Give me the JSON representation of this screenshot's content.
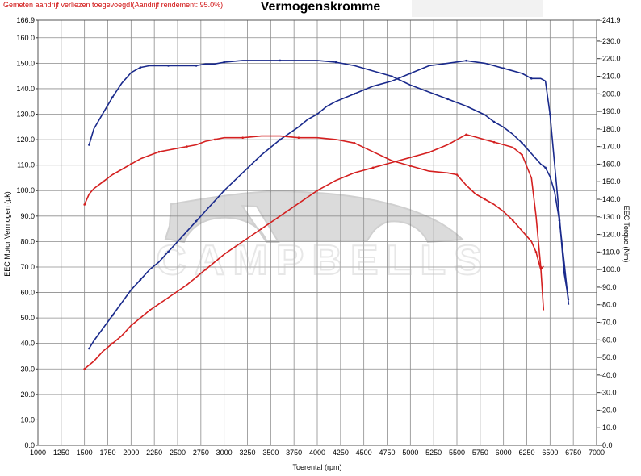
{
  "header": {
    "warning": "Gemeten aandrijf verliezen toegevoegd!(Aandrijf rendement: 95.0%)",
    "title": "Vermogenskromme"
  },
  "watermark": {
    "text": "CAMPBELLS",
    "icon": "car-silhouette-logo"
  },
  "chart_data": {
    "type": "line",
    "title": "Vermogenskromme",
    "xlabel": "Toerental (rpm)",
    "ylabel": "EEC Motor Vermogen (pk)",
    "y2label": "EEC Torque (Nm)",
    "xlim": [
      1000,
      7000
    ],
    "ylim": [
      0,
      166.9
    ],
    "y2lim": [
      0,
      241.9
    ],
    "x_ticks": [
      "1000",
      "1250",
      "1500",
      "1750",
      "2000",
      "2250",
      "2500",
      "2750",
      "3000",
      "3250",
      "3500",
      "3750",
      "4000",
      "4250",
      "4500",
      "4750",
      "5000",
      "5250",
      "5500",
      "5750",
      "6000",
      "6250",
      "6500",
      "6750",
      "7000"
    ],
    "y_ticks": [
      "0.0",
      "10.0",
      "20.0",
      "30.0",
      "40.0",
      "50.0",
      "60.0",
      "70.0",
      "80.0",
      "90.0",
      "100.0",
      "110.0",
      "120.0",
      "130.0",
      "140.0",
      "150.0",
      "160.0",
      "166.9"
    ],
    "y2_ticks": [
      "0.0",
      "10.0",
      "20.0",
      "30.0",
      "40.0",
      "50.0",
      "60.0",
      "70.0",
      "80.0",
      "90.0",
      "100.0",
      "110.0",
      "120.0",
      "130.0",
      "140.0",
      "150.0",
      "160.0",
      "170.0",
      "180.0",
      "190.0",
      "200.0",
      "210.0",
      "220.0",
      "230.0",
      "241.9"
    ],
    "grid": true,
    "colors": {
      "blue": "#1a2a8c",
      "red": "#d42020"
    },
    "series": [
      {
        "kind": "power",
        "axis": "left",
        "color": "#1a2a8c",
        "x": [
          1550,
          1600,
          1700,
          1800,
          1900,
          2000,
          2100,
          2200,
          2300,
          2400,
          2500,
          2600,
          2700,
          2800,
          2900,
          3000,
          3200,
          3400,
          3600,
          3800,
          3900,
          4000,
          4100,
          4200,
          4400,
          4600,
          4800,
          5000,
          5200,
          5400,
          5600,
          5800,
          5900,
          6000,
          6100,
          6200,
          6300,
          6400,
          6450,
          6500,
          6550,
          6600,
          6650,
          6700
        ],
        "y": [
          38,
          41,
          46,
          51,
          56,
          61,
          65,
          69,
          72,
          76,
          80,
          84,
          88,
          92,
          96,
          100,
          107,
          114,
          120,
          125,
          128,
          130,
          133,
          135,
          138,
          141,
          143,
          146,
          149,
          150,
          151,
          150,
          149,
          148,
          147,
          146,
          144,
          144,
          143,
          130,
          110,
          90,
          68,
          57
        ]
      },
      {
        "kind": "torque",
        "axis": "right",
        "color": "#1a2a8c",
        "x": [
          1550,
          1600,
          1700,
          1800,
          1900,
          2000,
          2100,
          2200,
          2300,
          2400,
          2500,
          2600,
          2700,
          2800,
          2900,
          3000,
          3200,
          3400,
          3600,
          3800,
          4000,
          4200,
          4400,
          4600,
          4800,
          5000,
          5200,
          5400,
          5600,
          5800,
          5900,
          6000,
          6100,
          6200,
          6300,
          6400,
          6450,
          6500,
          6550,
          6600,
          6650,
          6700
        ],
        "y": [
          171,
          180,
          189,
          198,
          206,
          212,
          215,
          216,
          216,
          216,
          216,
          216,
          216,
          217,
          217,
          218,
          219,
          219,
          219,
          219,
          219,
          218,
          216,
          213,
          210,
          205,
          201,
          197,
          193,
          188,
          184,
          181,
          177,
          172,
          166,
          160,
          158,
          153,
          144,
          128,
          105,
          80
        ]
      },
      {
        "kind": "power",
        "axis": "left",
        "color": "#d42020",
        "x": [
          1500,
          1600,
          1700,
          1800,
          1900,
          2000,
          2200,
          2400,
          2600,
          2800,
          3000,
          3200,
          3400,
          3600,
          3800,
          4000,
          4200,
          4400,
          4600,
          4800,
          5000,
          5200,
          5400,
          5500,
          5600,
          5700,
          5800,
          5900,
          6000,
          6100,
          6200,
          6300,
          6350,
          6400,
          6430
        ],
        "y": [
          30,
          33,
          37,
          40,
          43,
          47,
          53,
          58,
          63,
          69,
          75,
          80,
          85,
          90,
          95,
          100,
          104,
          107,
          109,
          111,
          113,
          115,
          118,
          120,
          122,
          121,
          120,
          119,
          118,
          117,
          114,
          105,
          90,
          70,
          53
        ]
      },
      {
        "kind": "torque",
        "axis": "right",
        "color": "#d42020",
        "x": [
          1500,
          1550,
          1600,
          1700,
          1800,
          1900,
          2000,
          2100,
          2200,
          2300,
          2400,
          2500,
          2600,
          2700,
          2800,
          2900,
          3000,
          3100,
          3200,
          3400,
          3600,
          3800,
          4000,
          4200,
          4400,
          4600,
          4800,
          5000,
          5200,
          5400,
          5500,
          5600,
          5700,
          5800,
          5900,
          6000,
          6100,
          6200,
          6300,
          6350,
          6400,
          6430
        ],
        "y": [
          137,
          143,
          146,
          150,
          154,
          157,
          160,
          163,
          165,
          167,
          168,
          169,
          170,
          171,
          173,
          174,
          175,
          175,
          175,
          176,
          176,
          175,
          175,
          174,
          172,
          167,
          162,
          159,
          156,
          155,
          154,
          148,
          143,
          140,
          137,
          133,
          128,
          122,
          116,
          110,
          100,
          102
        ]
      }
    ]
  }
}
